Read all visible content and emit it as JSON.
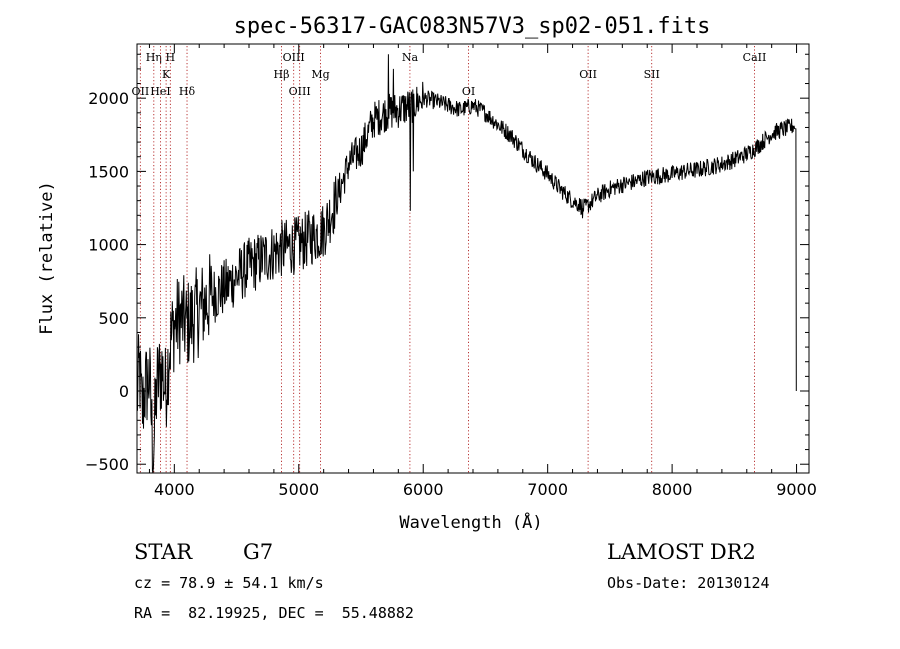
{
  "chart_data": {
    "type": "line",
    "title": "spec-56317-GAC083N57V3_sp02-051.fits",
    "xlabel": "Wavelength (Å)",
    "ylabel": "Flux (relative)",
    "xlim": [
      3700,
      9100
    ],
    "ylim": [
      -560,
      2370
    ],
    "x_ticks": [
      4000,
      5000,
      6000,
      7000,
      8000,
      9000
    ],
    "y_ticks": [
      -500,
      0,
      500,
      1000,
      1500,
      2000
    ],
    "grid": false,
    "series": [
      {
        "color": "#000000",
        "anchors": [
          [
            3700,
            -50
          ],
          [
            3720,
            150
          ],
          [
            3740,
            -150
          ],
          [
            3760,
            0
          ],
          [
            3800,
            100
          ],
          [
            3830,
            -440
          ],
          [
            3860,
            50
          ],
          [
            3900,
            150
          ],
          [
            3930,
            0
          ],
          [
            3960,
            300
          ],
          [
            4000,
            450
          ],
          [
            4050,
            500
          ],
          [
            4100,
            450
          ],
          [
            4150,
            500
          ],
          [
            4200,
            550
          ],
          [
            4300,
            650
          ],
          [
            4400,
            700
          ],
          [
            4500,
            780
          ],
          [
            4600,
            850
          ],
          [
            4700,
            900
          ],
          [
            4800,
            950
          ],
          [
            4900,
            980
          ],
          [
            5000,
            1000
          ],
          [
            5100,
            1050
          ],
          [
            5200,
            1100
          ],
          [
            5300,
            1300
          ],
          [
            5400,
            1550
          ],
          [
            5500,
            1650
          ],
          [
            5600,
            1850
          ],
          [
            5700,
            1900
          ],
          [
            5800,
            1920
          ],
          [
            5900,
            1950
          ],
          [
            6000,
            2000
          ],
          [
            6100,
            1980
          ],
          [
            6200,
            1950
          ],
          [
            6300,
            1920
          ],
          [
            6400,
            1950
          ],
          [
            6500,
            1900
          ],
          [
            6600,
            1820
          ],
          [
            6700,
            1750
          ],
          [
            6800,
            1650
          ],
          [
            6900,
            1560
          ],
          [
            7000,
            1480
          ],
          [
            7100,
            1380
          ],
          [
            7200,
            1300
          ],
          [
            7300,
            1250
          ],
          [
            7400,
            1330
          ],
          [
            7500,
            1380
          ],
          [
            7600,
            1410
          ],
          [
            7700,
            1430
          ],
          [
            7800,
            1460
          ],
          [
            7900,
            1470
          ],
          [
            8000,
            1480
          ],
          [
            8100,
            1500
          ],
          [
            8200,
            1510
          ],
          [
            8300,
            1530
          ],
          [
            8400,
            1550
          ],
          [
            8500,
            1580
          ],
          [
            8600,
            1620
          ],
          [
            8700,
            1680
          ],
          [
            8800,
            1760
          ],
          [
            8900,
            1790
          ],
          [
            8950,
            1800
          ],
          [
            8990,
            1820
          ],
          [
            9000,
            0
          ]
        ],
        "spikes": [
          [
            5720,
            2300
          ],
          [
            5760,
            2200
          ],
          [
            5895,
            1230
          ],
          [
            5920,
            1500
          ],
          [
            7280,
            1180
          ],
          [
            3840,
            -300
          ]
        ]
      }
    ],
    "lines": [
      {
        "label": "Hη",
        "x": 3835,
        "row": 1
      },
      {
        "label": "OII",
        "x": 3727,
        "row": 3
      },
      {
        "label": "HeI",
        "x": 3889,
        "row": 3
      },
      {
        "label": "H",
        "x": 3968,
        "row": 1
      },
      {
        "label": "K",
        "x": 3934,
        "row": 2
      },
      {
        "label": "Hδ",
        "x": 4102,
        "row": 3
      },
      {
        "label": "OIII",
        "x": 4959,
        "row": 1
      },
      {
        "label": "Hβ",
        "x": 4861,
        "row": 2
      },
      {
        "label": "OIII",
        "x": 5007,
        "row": 3
      },
      {
        "label": "Mg",
        "x": 5175,
        "row": 2
      },
      {
        "label": "Na",
        "x": 5893,
        "row": 1
      },
      {
        "label": "OI",
        "x": 6364,
        "row": 3
      },
      {
        "label": "OII",
        "x": 7325,
        "row": 2
      },
      {
        "label": "SII",
        "x": 7836,
        "row": 2
      },
      {
        "label": "CaII",
        "x": 8662,
        "row": 1
      }
    ]
  },
  "info": {
    "class_type": "STAR",
    "subclass": "G7",
    "survey": "LAMOST DR2",
    "velocity": "cz = 78.9 ± 54.1 km/s",
    "obs_date": "Obs-Date: 20130124",
    "coords": "RA =  82.19925, DEC =  55.48882"
  }
}
